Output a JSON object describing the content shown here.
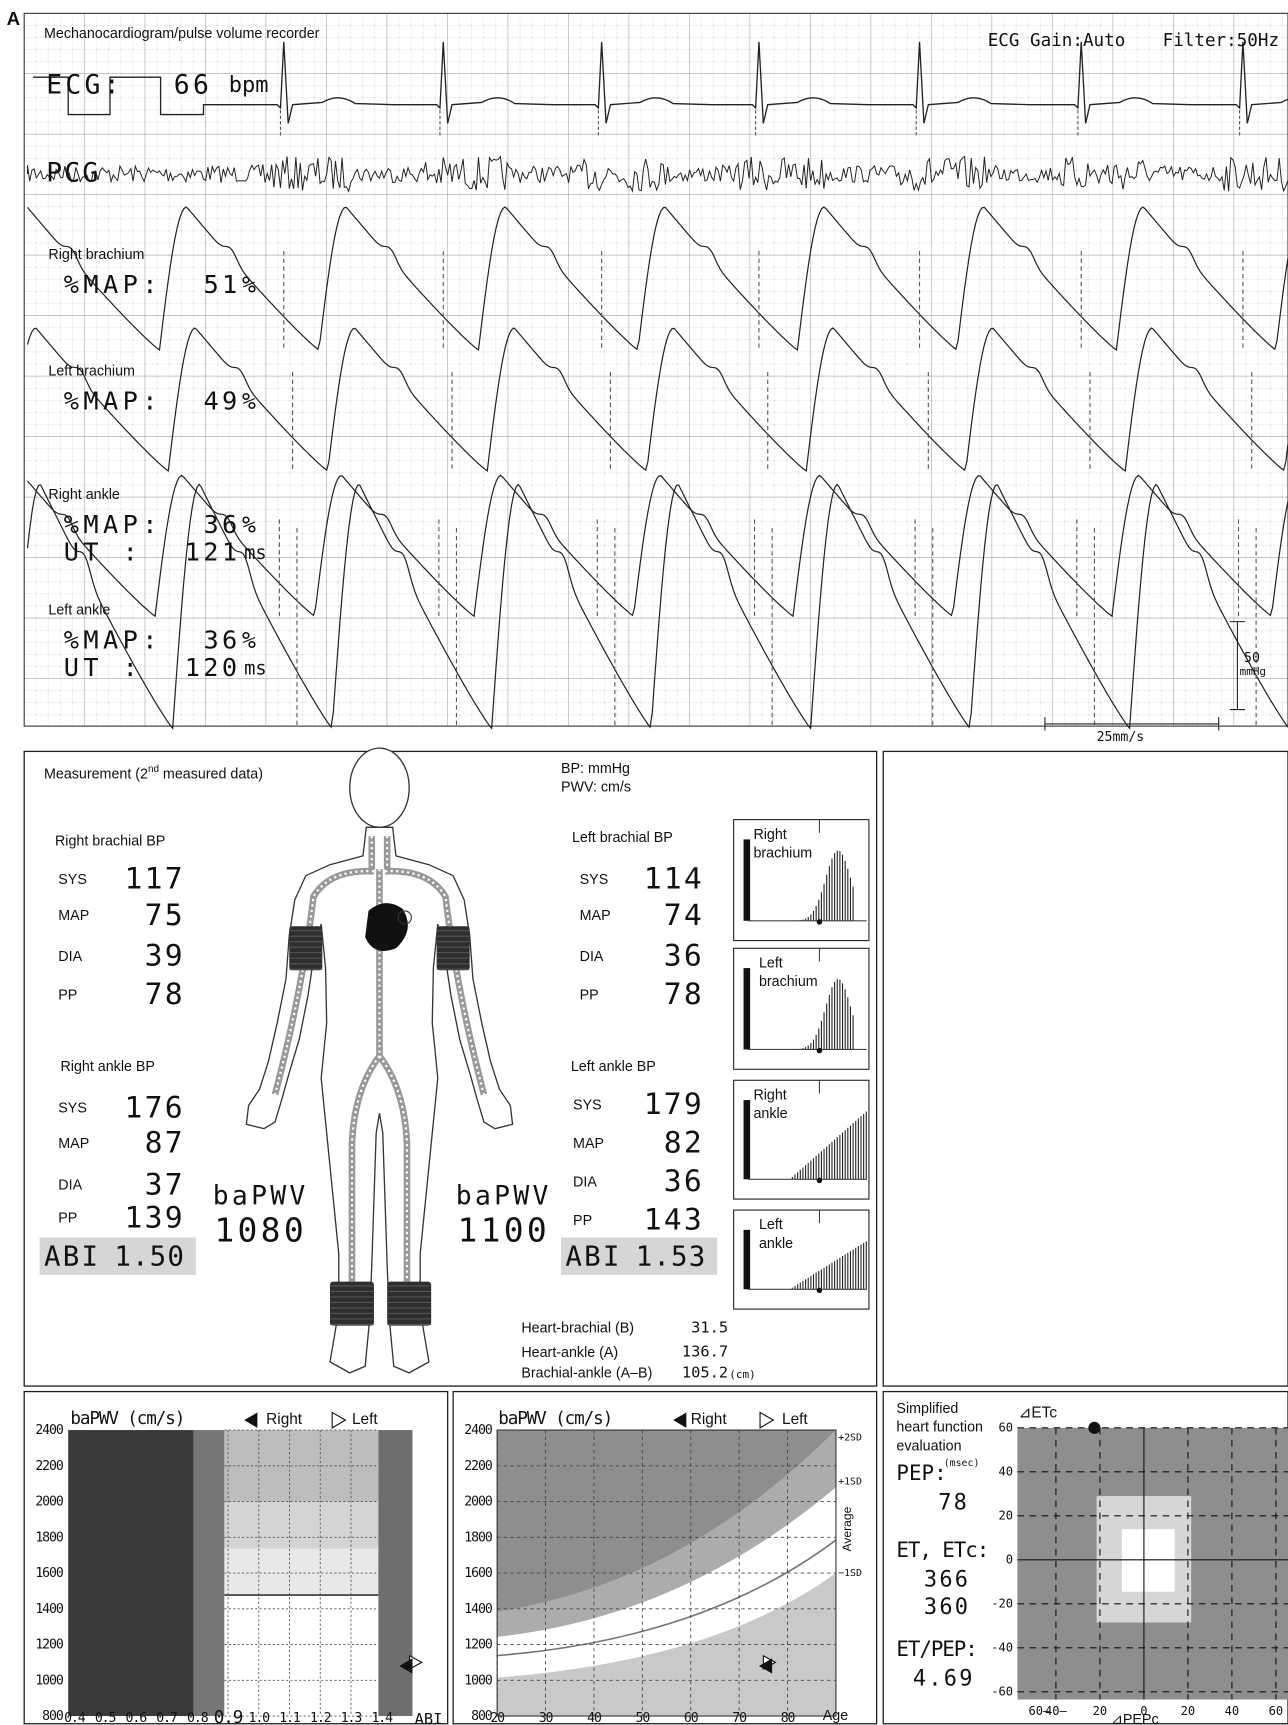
{
  "panel_label": "A",
  "recorder": {
    "title": "Mechanocardiogram/pulse volume recorder",
    "ecg_label": "ECG:",
    "heart_rate": 66,
    "heart_rate_unit": "bpm",
    "ecg_gain": "ECG Gain:Auto",
    "filter": "Filter:50Hz",
    "pcg_label": "PCG",
    "channels": [
      {
        "name": "Right brachium",
        "map_label": "%MAP:",
        "map": 51,
        "map_unit": "%"
      },
      {
        "name": "Left brachium",
        "map_label": "%MAP:",
        "map": 49,
        "map_unit": "%"
      },
      {
        "name": "Right ankle",
        "map_label": "%MAP:",
        "map": 36,
        "map_unit": "%",
        "ut_label": "UT :",
        "ut": 121,
        "ut_unit": "ms"
      },
      {
        "name": "Left ankle",
        "map_label": "%MAP:",
        "map": 36,
        "map_unit": "%",
        "ut_label": "UT :",
        "ut": 120,
        "ut_unit": "ms"
      }
    ],
    "amplitude_scale": [
      "50",
      "mmHg"
    ],
    "speed_scale": "25mm/s"
  },
  "measurement": {
    "title": "Measurement (2",
    "title_sup": "nd",
    "title_rest": " measured data)",
    "units": [
      "BP: mmHg",
      "PWV: cm/s"
    ],
    "sites": [
      {
        "title": "Right brachial BP",
        "rows": [
          [
            "SYS",
            117
          ],
          [
            "MAP",
            75
          ],
          [
            "DIA",
            39
          ],
          [
            "PP",
            78
          ]
        ]
      },
      {
        "title": "Right ankle BP",
        "rows": [
          [
            "SYS",
            176
          ],
          [
            "MAP",
            87
          ],
          [
            "DIA",
            37
          ],
          [
            "PP",
            139
          ]
        ]
      },
      {
        "title": "Left brachial BP",
        "rows": [
          [
            "SYS",
            114
          ],
          [
            "MAP",
            74
          ],
          [
            "DIA",
            36
          ],
          [
            "PP",
            78
          ]
        ]
      },
      {
        "title": "Left ankle BP",
        "rows": [
          [
            "SYS",
            179
          ],
          [
            "MAP",
            82
          ],
          [
            "DIA",
            36
          ],
          [
            "PP",
            143
          ]
        ]
      }
    ],
    "right_pwv": {
      "label": "baPWV",
      "value": 1080
    },
    "left_pwv": {
      "label": "baPWV",
      "value": 1100
    },
    "right_abi": {
      "label": "ABI",
      "value": "1.50"
    },
    "left_abi": {
      "label": "ABI",
      "value": "1.53"
    },
    "waveform_thumbs": [
      [
        "Right",
        "brachium"
      ],
      [
        "Left",
        "brachium"
      ],
      [
        "Right",
        "ankle"
      ],
      [
        "Left",
        "ankle"
      ]
    ],
    "distances": [
      [
        "Heart-brachial (B)",
        31.5
      ],
      [
        "Heart-ankle (A)",
        136.7
      ],
      [
        "Brachial-ankle (A–B)",
        105.2
      ]
    ],
    "distance_unit": "(cm)"
  },
  "pwv_abi_chart": {
    "title": "baPWV (cm/s)",
    "legend": [
      "Right",
      "Left"
    ],
    "x_label": "ABI",
    "xlim": [
      0.38,
      1.5
    ],
    "ylim": [
      800,
      2400
    ],
    "xticks": [
      0.4,
      0.5,
      0.6,
      0.7,
      0.8,
      0.9,
      {
        "value": 1,
        "label": "1.0"
      },
      1.1,
      1.2,
      1.3,
      1.4
    ],
    "yticks": [
      800,
      1000,
      1200,
      1400,
      1600,
      1800,
      2000,
      2200,
      2400
    ]
  },
  "pwv_age_chart": {
    "title": "baPWV (cm/s)",
    "legend": [
      "Right",
      "Left"
    ],
    "x_label": "Age",
    "xlim": [
      20,
      90
    ],
    "ylim": [
      800,
      2400
    ],
    "xticks": [
      20,
      30,
      40,
      50,
      60,
      70,
      80
    ],
    "yticks": [
      800,
      1000,
      1200,
      1400,
      1600,
      1800,
      2000,
      2200,
      2400
    ],
    "band_labels": [
      "+2SD",
      "+1SD",
      "Average",
      "−1SD"
    ]
  },
  "heart_function": {
    "title": [
      "Simplified",
      "heart function",
      "evaluation"
    ],
    "pep_label": "PEP:",
    "pep_unit": "(msec)",
    "pep": 78,
    "et_label": "ET, ETc:",
    "et": 366,
    "etc": 360,
    "ratio_label": "ET/PEP:",
    "ratio": 4.69,
    "y_label": "⊿ETc",
    "x_label": "⊿PEPc",
    "xlim": [
      -57.5,
      65.5
    ],
    "ylim": [
      -63.5,
      60
    ],
    "xticks": [
      {
        "value": -60,
        "label": "60–"
      },
      {
        "value": -40,
        "label": "40–"
      },
      {
        "value": -20,
        "label": "20"
      },
      0,
      20,
      40,
      60
    ],
    "yticks": [
      60,
      40,
      20,
      0,
      -20,
      -40,
      -60
    ],
    "point": [
      -22.5,
      60
    ]
  }
}
